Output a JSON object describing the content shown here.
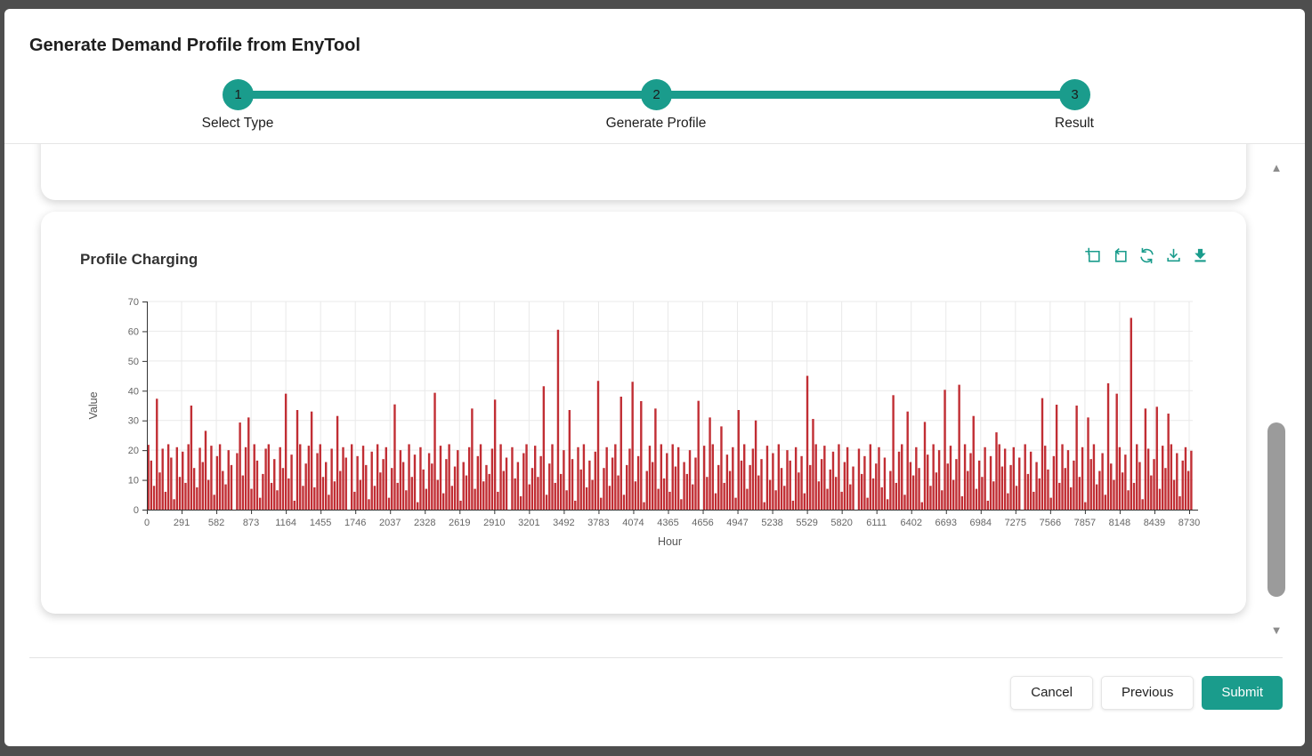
{
  "modal": {
    "title": "Generate Demand Profile from EnyTool"
  },
  "stepper": {
    "steps": [
      {
        "number": "1",
        "label": "Select Type"
      },
      {
        "number": "2",
        "label": "Generate Profile"
      },
      {
        "number": "3",
        "label": "Result"
      }
    ]
  },
  "chart_card": {
    "title": "Profile Charging",
    "toolbar_icons": [
      "zoom-select-icon",
      "zoom-back-icon",
      "restore-icon",
      "download-icon",
      "export-image-icon"
    ]
  },
  "scrollbar": {
    "up_icon": "▲",
    "down_icon": "▼"
  },
  "footer": {
    "cancel_label": "Cancel",
    "previous_label": "Previous",
    "submit_label": "Submit"
  },
  "colors": {
    "accent": "#1a9c8c",
    "bar": "#c12e34",
    "backdrop": "#4e4e4e",
    "axis_line": "#333333",
    "tick_text": "#666666",
    "grid_line": "#e9e9e9"
  },
  "chart_data": {
    "type": "bar",
    "title": "Profile Charging",
    "xlabel": "Hour",
    "ylabel": "Value",
    "xlim": [
      0,
      8760
    ],
    "ylim": [
      0,
      70
    ],
    "grid": true,
    "legend_position": "none",
    "x_ticks": [
      0,
      291,
      582,
      873,
      1164,
      1455,
      1746,
      2037,
      2328,
      2619,
      2910,
      3201,
      3492,
      3783,
      4074,
      4365,
      4656,
      4947,
      5238,
      5529,
      5820,
      6111,
      6402,
      6693,
      6984,
      7275,
      7566,
      7857,
      8148,
      8439,
      8730
    ],
    "y_ticks": [
      0,
      10,
      20,
      30,
      40,
      50,
      60,
      70
    ],
    "hours_per_point": 24,
    "series": [
      {
        "name": "Profile Charging",
        "values": [
          21.8,
          16.5,
          8,
          37.3,
          12.5,
          20.5,
          6,
          22,
          17.5,
          3.5,
          21,
          11,
          19.5,
          9,
          22,
          35,
          14,
          7.5,
          20.8,
          16,
          26.5,
          10,
          21.5,
          5,
          18,
          22,
          13,
          8.5,
          20,
          15,
          0,
          19,
          29.3,
          11.5,
          21,
          31,
          7,
          22,
          16.5,
          4,
          12,
          20.5,
          22,
          9,
          17,
          6.5,
          21,
          14,
          39,
          10.5,
          18.5,
          3,
          33.5,
          22,
          8,
          15.5,
          21.5,
          33,
          7.5,
          19,
          22,
          11,
          16,
          5,
          20.5,
          9.5,
          31.5,
          13,
          21,
          17.5,
          0,
          22,
          6,
          18,
          10,
          21.5,
          15,
          3.5,
          19.5,
          8,
          22,
          12.5,
          17,
          21,
          4,
          14,
          35.4,
          9,
          20,
          16,
          6.5,
          22,
          11,
          18.5,
          2.5,
          21,
          13.5,
          7,
          19,
          15.5,
          39.3,
          10,
          21.5,
          5.5,
          17,
          22,
          8,
          14.5,
          20,
          3,
          16,
          11.5,
          21,
          34,
          7,
          18,
          22,
          9.5,
          15,
          12,
          20.5,
          37,
          6,
          22,
          13,
          17.5,
          0,
          21,
          10.5,
          16,
          4.5,
          19,
          22,
          8.5,
          14,
          21.5,
          11,
          18,
          41.5,
          5,
          15.5,
          22,
          9,
          60.5,
          12,
          20,
          6.5,
          33.5,
          17,
          3,
          21,
          13.5,
          22,
          7.5,
          16.5,
          10,
          19.5,
          43.3,
          4,
          14,
          21,
          8,
          17.5,
          22,
          11.5,
          38,
          5,
          15,
          20.5,
          43,
          9.5,
          18,
          36.5,
          2.5,
          13,
          21.5,
          16,
          34,
          7,
          22,
          10.5,
          19,
          6,
          22,
          14.5,
          21,
          3.5,
          16,
          12,
          20,
          8.5,
          17.5,
          36.6,
          0,
          21.5,
          11,
          31,
          22,
          5.5,
          15,
          28,
          9,
          18.5,
          13,
          21,
          4,
          33.5,
          16.5,
          22,
          7,
          15,
          20.5,
          30,
          11.5,
          17,
          2.5,
          21.5,
          10,
          19,
          6.5,
          22,
          14,
          8,
          20,
          16.5,
          3,
          21,
          12.5,
          18,
          5.5,
          45,
          15,
          30.5,
          22,
          9.5,
          17,
          21.5,
          7,
          13.5,
          19.5,
          11,
          22,
          6,
          16,
          21,
          8.5,
          14.5,
          0,
          20.5,
          12,
          18,
          4,
          22,
          10.5,
          15.5,
          21,
          7.5,
          17.5,
          3.5,
          13,
          38.5,
          9,
          19.5,
          22,
          5,
          33,
          16,
          11.5,
          21,
          14,
          2.5,
          29.5,
          18.5,
          8,
          22,
          12.5,
          20,
          6.5,
          40.3,
          15.5,
          21.5,
          10,
          17,
          42,
          4.5,
          22,
          13,
          19,
          31.5,
          7,
          16.5,
          11,
          21,
          3,
          18,
          9.5,
          26,
          22,
          14.5,
          20.5,
          5.5,
          15,
          21,
          8,
          17.5,
          0,
          22,
          12,
          19.5,
          6,
          16,
          10.5,
          37.5,
          21.5,
          13.5,
          4,
          18,
          35.3,
          9,
          22,
          14,
          20,
          7.5,
          16.5,
          35,
          11,
          21,
          2.5,
          31,
          17,
          22,
          8.5,
          13,
          19,
          5,
          42.5,
          15.5,
          10,
          39,
          21,
          12.5,
          18.5,
          6.5,
          64.5,
          9,
          22,
          16,
          3.5,
          34,
          20.5,
          11.5,
          17,
          34.6,
          7,
          21.5,
          14,
          32.3,
          22,
          10,
          19,
          4.5,
          16.5,
          21,
          13,
          19.8
        ]
      }
    ]
  }
}
